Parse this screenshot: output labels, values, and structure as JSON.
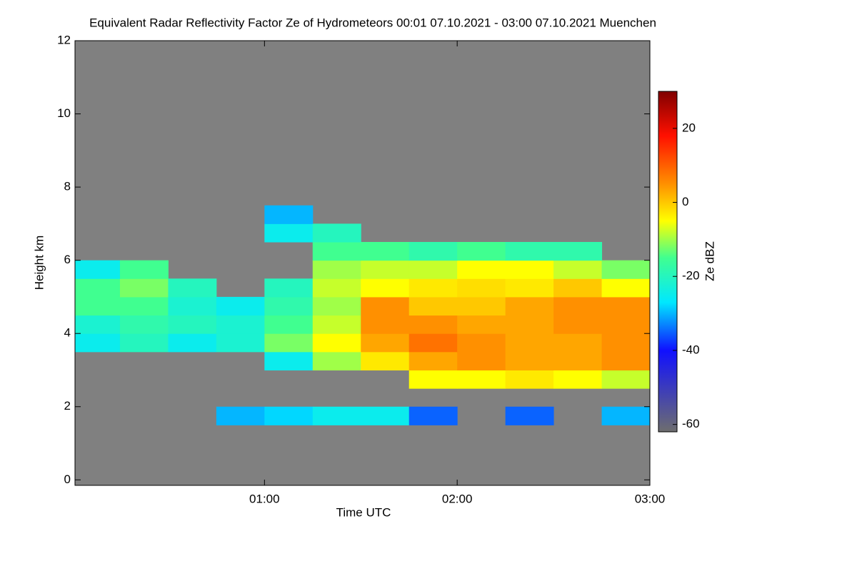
{
  "chart_data": {
    "type": "heatmap",
    "title": "Equivalent Radar Reflectivity Factor Ze of Hydrometeors   00:01 07.10.2021 - 03:00 07.10.2021 Muenchen",
    "xlabel": "Time UTC",
    "ylabel": "Height km",
    "colorbar_label": "Ze dBZ",
    "xlim": [
      1,
      180
    ],
    "xticks": [
      {
        "value": 60,
        "label": "01:00"
      },
      {
        "value": 120,
        "label": "02:00"
      },
      {
        "value": 180,
        "label": "03:00"
      }
    ],
    "ylim": [
      -0.15,
      12
    ],
    "yticks": [
      0,
      2,
      4,
      6,
      8,
      10,
      12
    ],
    "clim": [
      -62,
      30
    ],
    "cticks": [
      20,
      0,
      -20,
      -40,
      -60
    ],
    "background": "#808080",
    "colormap": [
      [
        -62,
        "#6e6e6e"
      ],
      [
        -40,
        "#1010ff"
      ],
      [
        -27,
        "#00e8ff"
      ],
      [
        -15,
        "#40ff90"
      ],
      [
        -5,
        "#ffff00"
      ],
      [
        5,
        "#ff9000"
      ],
      [
        18,
        "#ff1000"
      ],
      [
        30,
        "#800000"
      ]
    ],
    "xbins": [
      0,
      15,
      30,
      45,
      60,
      75,
      90,
      105,
      120,
      135,
      150,
      165,
      180
    ],
    "ybins": [
      1.5,
      2,
      2.5,
      3,
      3.5,
      4,
      4.5,
      5,
      5.5,
      6,
      6.5,
      7,
      7.5
    ],
    "z": [
      [
        null,
        null,
        null,
        -30,
        -28,
        -25,
        -25,
        -35,
        null,
        -35,
        null,
        -30
      ],
      [
        null,
        null,
        null,
        null,
        null,
        null,
        null,
        null,
        null,
        null,
        null,
        null
      ],
      [
        null,
        null,
        null,
        null,
        null,
        null,
        null,
        -5,
        -5,
        -3,
        -5,
        -8
      ],
      [
        null,
        null,
        null,
        null,
        -25,
        -10,
        -3,
        3,
        5,
        3,
        3,
        5
      ],
      [
        -25,
        -20,
        -25,
        -22,
        -12,
        -5,
        3,
        8,
        5,
        3,
        3,
        5
      ],
      [
        -22,
        -18,
        -20,
        -22,
        -15,
        -8,
        5,
        5,
        3,
        3,
        5,
        5
      ],
      [
        -15,
        -15,
        -22,
        -25,
        -18,
        -10,
        5,
        0,
        0,
        3,
        5,
        5
      ],
      [
        -15,
        -12,
        -20,
        null,
        -20,
        -8,
        -5,
        -3,
        -2,
        -3,
        0,
        -5
      ],
      [
        -25,
        -15,
        null,
        null,
        null,
        -10,
        -8,
        -8,
        -5,
        -5,
        -8,
        -12
      ],
      [
        null,
        null,
        null,
        null,
        null,
        -15,
        -15,
        -18,
        -15,
        -18,
        -18,
        null
      ],
      [
        null,
        null,
        null,
        null,
        -25,
        -20,
        null,
        null,
        null,
        null,
        null,
        null
      ],
      [
        null,
        null,
        null,
        null,
        -30,
        null,
        null,
        null,
        null,
        null,
        null,
        null
      ]
    ]
  }
}
